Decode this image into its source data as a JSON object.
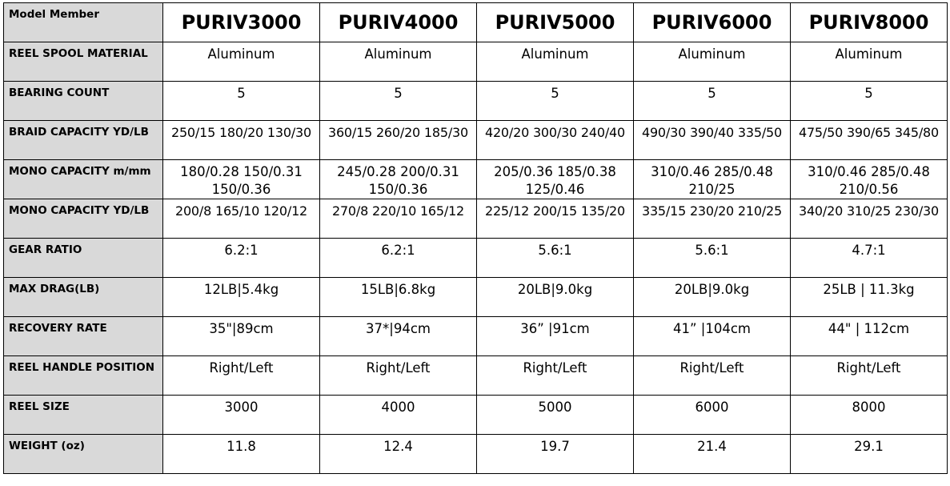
{
  "header_label": "Model Member",
  "models": [
    "PURIV3000",
    "PURIV4000",
    "PURIV5000",
    "PURIV6000",
    "PURIV8000"
  ],
  "rows": [
    {
      "label": "REEL SPOOL MATERIAL",
      "values": [
        "Aluminum",
        "Aluminum",
        "Aluminum",
        "Aluminum",
        "Aluminum"
      ]
    },
    {
      "label": "BEARING COUNT",
      "values": [
        "5",
        "5",
        "5",
        "5",
        "5"
      ]
    },
    {
      "label": "BRAID CAPACITY YD/LB",
      "values": [
        "250/15 180/20 130/30",
        "360/15 260/20 185/30",
        "420/20 300/30 240/40",
        "490/30 390/40 335/50",
        "475/50 390/65 345/80"
      ]
    },
    {
      "label": "MONO CAPACITY m/mm",
      "values": [
        "180/0.28 150/0.31 150/0.36",
        "245/0.28 200/0.31 150/0.36",
        "205/0.36 185/0.38 125/0.46",
        "310/0.46 285/0.48 210/25",
        "310/0.46 285/0.48 210/0.56"
      ]
    },
    {
      "label": "MONO CAPACITY YD/LB",
      "values": [
        "200/8 165/10 120/12",
        "270/8 220/10 165/12",
        "225/12 200/15 135/20",
        "335/15 230/20 210/25",
        "340/20 310/25 230/30"
      ]
    },
    {
      "label": "GEAR RATIO",
      "values": [
        "6.2:1",
        "6.2:1",
        "5.6:1",
        "5.6:1",
        "4.7:1"
      ]
    },
    {
      "label": "MAX DRAG(LB)",
      "values": [
        "12LB|5.4kg",
        "15LB|6.8kg",
        "20LB|9.0kg",
        "20LB|9.0kg",
        "25LB | 11.3kg"
      ]
    },
    {
      "label": "RECOVERY RATE",
      "values": [
        "35\"|89cm",
        "37*|94cm",
        "36” |91cm",
        "41” |104cm",
        "44\" | 112cm"
      ]
    },
    {
      "label": "REEL HANDLE POSITION",
      "values": [
        "Right/Left",
        "Right/Left",
        "Right/Left",
        "Right/Left",
        "Right/Left"
      ]
    },
    {
      "label": "REEL SIZE",
      "values": [
        "3000",
        "4000",
        "5000",
        "6000",
        "8000"
      ]
    },
    {
      "label": "WEIGHT (oz)",
      "values": [
        "11.8",
        "12.4",
        "19.7",
        "21.4",
        "29.1"
      ]
    }
  ]
}
